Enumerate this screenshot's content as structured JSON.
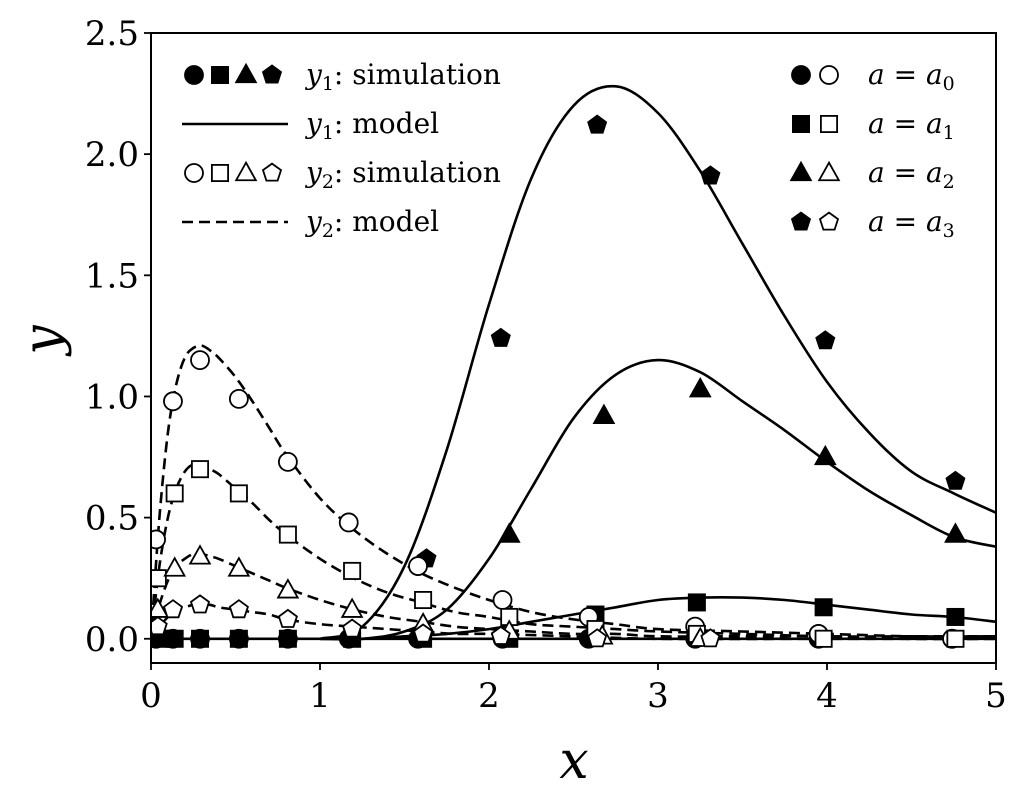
{
  "chart_data": {
    "type": "scatter",
    "xlabel": "x",
    "ylabel": "y",
    "xlim": [
      0,
      5
    ],
    "ylim": [
      -0.1,
      2.5
    ],
    "xticks": [
      0,
      1,
      2,
      3,
      4,
      5
    ],
    "yticks": [
      0.0,
      0.5,
      1.0,
      1.5,
      2.0,
      2.5
    ],
    "xtick_labels": [
      "0",
      "1",
      "2",
      "3",
      "4",
      "5"
    ],
    "ytick_labels": [
      "0.0",
      "0.5",
      "1.0",
      "1.5",
      "2.0",
      "2.5"
    ],
    "grid": false,
    "legend_left": [
      {
        "markers": "filled",
        "var": "y",
        "sub": "1",
        "text": ": simulation"
      },
      {
        "line": "solid",
        "var": "y",
        "sub": "1",
        "text": ": model"
      },
      {
        "markers": "open",
        "var": "y",
        "sub": "2",
        "text": ": simulation"
      },
      {
        "line": "dashed",
        "var": "y",
        "sub": "2",
        "text": ": model"
      }
    ],
    "legend_right": [
      {
        "marker": "circle",
        "label": "a = a",
        "sub": "0"
      },
      {
        "marker": "square",
        "label": "a = a",
        "sub": "1"
      },
      {
        "marker": "triangle",
        "label": "a = a",
        "sub": "2"
      },
      {
        "marker": "pentagon",
        "label": "a = a",
        "sub": "3"
      }
    ],
    "series": [
      {
        "variable": "y1",
        "a": "a0",
        "marker": "circle",
        "fill": "filled",
        "x": [
          0.03,
          0.13,
          0.29,
          0.52,
          0.81,
          1.17,
          1.58,
          2.08,
          2.59,
          3.22,
          3.95,
          4.74
        ],
        "y": [
          0.0,
          0.0,
          0.0,
          0.0,
          0.0,
          0.0,
          0.0,
          0.0,
          0.0,
          0.0,
          0.0,
          0.0
        ]
      },
      {
        "variable": "y1",
        "a": "a1",
        "marker": "square",
        "fill": "filled",
        "x": [
          0.06,
          0.14,
          0.29,
          0.52,
          0.81,
          1.19,
          1.61,
          2.12,
          2.63,
          3.23,
          3.98,
          4.76
        ],
        "y": [
          0.0,
          0.0,
          0.0,
          0.0,
          0.0,
          0.0,
          0.0,
          0.0,
          0.1,
          0.15,
          0.13,
          0.09
        ]
      },
      {
        "variable": "y1",
        "a": "a2",
        "marker": "triangle",
        "fill": "filled",
        "x": [
          2.12,
          2.68,
          3.25,
          3.99,
          4.76
        ],
        "y": [
          0.43,
          0.92,
          1.03,
          0.75,
          0.43
        ]
      },
      {
        "variable": "y1",
        "a": "a3",
        "marker": "pentagon",
        "fill": "filled",
        "x": [
          1.63,
          2.07,
          2.64,
          3.31,
          3.99,
          4.76
        ],
        "y": [
          0.33,
          1.24,
          2.12,
          1.91,
          1.23,
          0.65
        ]
      },
      {
        "variable": "y2",
        "a": "a0",
        "marker": "circle",
        "fill": "open",
        "x": [
          0.03,
          0.13,
          0.29,
          0.52,
          0.81,
          1.17,
          1.58,
          2.08,
          2.59,
          3.22,
          3.95,
          4.74
        ],
        "y": [
          0.41,
          0.98,
          1.15,
          0.99,
          0.73,
          0.48,
          0.3,
          0.16,
          0.09,
          0.05,
          0.02,
          0.0
        ]
      },
      {
        "variable": "y2",
        "a": "a1",
        "marker": "square",
        "fill": "open",
        "x": [
          0.04,
          0.14,
          0.29,
          0.52,
          0.81,
          1.19,
          1.61,
          2.12,
          2.63,
          3.23,
          3.98,
          4.76
        ],
        "y": [
          0.25,
          0.6,
          0.7,
          0.6,
          0.43,
          0.28,
          0.16,
          0.09,
          0.04,
          0.02,
          0.0,
          0.0
        ]
      },
      {
        "variable": "y2",
        "a": "a2",
        "marker": "triangle",
        "fill": "open",
        "x": [
          0.04,
          0.14,
          0.29,
          0.52,
          0.81,
          1.19,
          1.61,
          2.12,
          2.67,
          3.25
        ],
        "y": [
          0.12,
          0.29,
          0.34,
          0.29,
          0.2,
          0.12,
          0.06,
          0.03,
          0.01,
          0.0
        ]
      },
      {
        "variable": "y2",
        "a": "a3",
        "marker": "pentagon",
        "fill": "open",
        "x": [
          0.04,
          0.13,
          0.29,
          0.52,
          0.81,
          1.19,
          1.61,
          2.07,
          2.64,
          3.31
        ],
        "y": [
          0.05,
          0.12,
          0.14,
          0.12,
          0.08,
          0.04,
          0.02,
          0.01,
          0.0,
          0.0
        ]
      },
      {
        "variable": "y1",
        "a": "a0",
        "line": "solid",
        "x": [
          0.0,
          1.0,
          2.0,
          3.0,
          4.0,
          5.0
        ],
        "y": [
          0.0,
          0.0,
          0.0,
          0.0,
          0.0,
          0.0
        ]
      },
      {
        "variable": "y1",
        "a": "a1",
        "line": "solid",
        "x": [
          1.0,
          1.25,
          1.5,
          1.75,
          2.0,
          2.25,
          2.5,
          2.75,
          3.0,
          3.25,
          3.5,
          3.75,
          4.0,
          4.25,
          4.5,
          4.75,
          5.0
        ],
        "y": [
          0.0,
          0.0,
          0.01,
          0.02,
          0.04,
          0.07,
          0.1,
          0.13,
          0.16,
          0.17,
          0.17,
          0.16,
          0.14,
          0.12,
          0.1,
          0.09,
          0.07
        ]
      },
      {
        "variable": "y1",
        "a": "a2",
        "line": "solid",
        "x": [
          1.0,
          1.25,
          1.5,
          1.75,
          2.0,
          2.25,
          2.5,
          2.75,
          3.0,
          3.25,
          3.5,
          3.75,
          4.0,
          4.25,
          4.5,
          4.75,
          5.0
        ],
        "y": [
          0.0,
          0.0,
          0.03,
          0.12,
          0.33,
          0.62,
          0.91,
          1.09,
          1.15,
          1.1,
          0.98,
          0.86,
          0.73,
          0.61,
          0.51,
          0.42,
          0.38
        ]
      },
      {
        "variable": "y1",
        "a": "a3",
        "line": "solid",
        "x": [
          1.0,
          1.25,
          1.5,
          1.75,
          2.0,
          2.25,
          2.5,
          2.75,
          3.0,
          3.25,
          3.5,
          3.75,
          4.0,
          4.25,
          4.5,
          4.75,
          5.0
        ],
        "y": [
          0.0,
          0.05,
          0.3,
          0.78,
          1.38,
          1.9,
          2.2,
          2.28,
          2.17,
          1.93,
          1.63,
          1.33,
          1.06,
          0.85,
          0.69,
          0.6,
          0.52
        ]
      },
      {
        "variable": "y2",
        "a": "a0",
        "line": "dashed",
        "x": [
          0.0,
          0.05,
          0.1,
          0.15,
          0.2,
          0.25,
          0.3,
          0.35,
          0.4,
          0.5,
          0.6,
          0.7,
          0.8,
          1.0,
          1.2,
          1.4,
          1.6,
          1.8,
          2.0,
          2.25,
          2.5,
          2.75,
          3.0,
          3.5,
          4.0,
          4.5,
          5.0
        ],
        "y": [
          0.0,
          0.5,
          0.85,
          1.05,
          1.16,
          1.2,
          1.21,
          1.19,
          1.16,
          1.08,
          0.98,
          0.87,
          0.76,
          0.58,
          0.45,
          0.35,
          0.27,
          0.21,
          0.16,
          0.11,
          0.08,
          0.06,
          0.04,
          0.03,
          0.02,
          0.01,
          0.01
        ]
      },
      {
        "variable": "y2",
        "a": "a1",
        "line": "dashed",
        "x": [
          0.0,
          0.05,
          0.1,
          0.15,
          0.2,
          0.25,
          0.3,
          0.35,
          0.4,
          0.5,
          0.6,
          0.7,
          0.8,
          1.0,
          1.2,
          1.4,
          1.6,
          1.8,
          2.0,
          2.25,
          2.5,
          2.75,
          3.0,
          3.5,
          4.0,
          4.5,
          5.0
        ],
        "y": [
          0.0,
          0.3,
          0.5,
          0.62,
          0.69,
          0.72,
          0.72,
          0.7,
          0.68,
          0.62,
          0.56,
          0.49,
          0.43,
          0.33,
          0.25,
          0.19,
          0.15,
          0.11,
          0.09,
          0.06,
          0.05,
          0.04,
          0.03,
          0.02,
          0.01,
          0.01,
          0.01
        ]
      },
      {
        "variable": "y2",
        "a": "a2",
        "line": "dashed",
        "x": [
          0.0,
          0.05,
          0.1,
          0.15,
          0.2,
          0.25,
          0.3,
          0.35,
          0.4,
          0.5,
          0.6,
          0.7,
          0.8,
          1.0,
          1.2,
          1.4,
          1.6,
          1.8,
          2.0,
          2.25,
          2.5,
          2.75,
          3.0,
          3.5,
          4.0,
          4.5,
          5.0
        ],
        "y": [
          0.0,
          0.14,
          0.24,
          0.3,
          0.33,
          0.35,
          0.35,
          0.34,
          0.33,
          0.3,
          0.27,
          0.24,
          0.21,
          0.16,
          0.12,
          0.09,
          0.07,
          0.05,
          0.04,
          0.03,
          0.02,
          0.02,
          0.01,
          0.01,
          0.01,
          0.0,
          0.0
        ]
      },
      {
        "variable": "y2",
        "a": "a3",
        "line": "dashed",
        "x": [
          0.0,
          0.05,
          0.1,
          0.15,
          0.2,
          0.25,
          0.3,
          0.35,
          0.4,
          0.5,
          0.6,
          0.7,
          0.8,
          1.0,
          1.2,
          1.4,
          1.6,
          1.8,
          2.0,
          2.5,
          3.0,
          4.0,
          5.0
        ],
        "y": [
          0.0,
          0.05,
          0.09,
          0.12,
          0.13,
          0.14,
          0.14,
          0.14,
          0.13,
          0.12,
          0.11,
          0.1,
          0.08,
          0.06,
          0.05,
          0.04,
          0.03,
          0.02,
          0.02,
          0.01,
          0.0,
          0.0,
          0.0
        ]
      }
    ]
  }
}
